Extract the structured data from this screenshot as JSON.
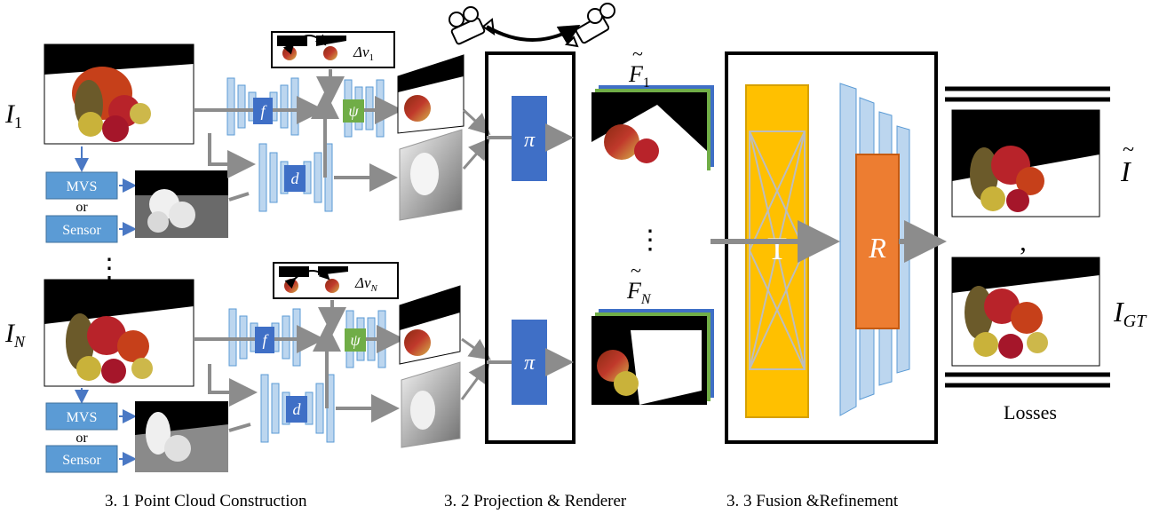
{
  "inputs": {
    "top_label": "I",
    "top_sub": "1",
    "bottom_label": "I",
    "bottom_sub": "N"
  },
  "sources": {
    "mvs": "MVS",
    "or": "or",
    "sensor": "Sensor"
  },
  "ellipsis": "⋮",
  "networks": {
    "feature": "f",
    "depth": "d",
    "decoder": "ψ",
    "projection": "π"
  },
  "view_change": {
    "top_delta": "Δv",
    "top_sub": "1",
    "bottom_delta": "Δv",
    "bottom_sub": "N"
  },
  "projected_features": {
    "top_label": "F",
    "top_sub": "1",
    "bottom_label": "F",
    "bottom_sub": "N",
    "tilde": "~"
  },
  "fusion": {
    "transformer": "T",
    "refiner": "R"
  },
  "outputs": {
    "pred_label": "I",
    "pred_tilde": "~",
    "comma": ",",
    "gt_label": "I",
    "gt_sub": "GT",
    "losses": "Losses"
  },
  "sections": {
    "s1": "3. 1 Point Cloud Construction",
    "s2": "3. 2 Projection & Renderer",
    "s3": "3. 3 Fusion &Refinement"
  },
  "colors": {
    "blue_box": "#3f6fc6",
    "blue_light": "#bcd6ef",
    "green_box": "#70ad47",
    "yellow": "#ffc000",
    "orange": "#ed7d31",
    "arrow": "#8c8c8c",
    "source_box": "#5b9bd5"
  }
}
